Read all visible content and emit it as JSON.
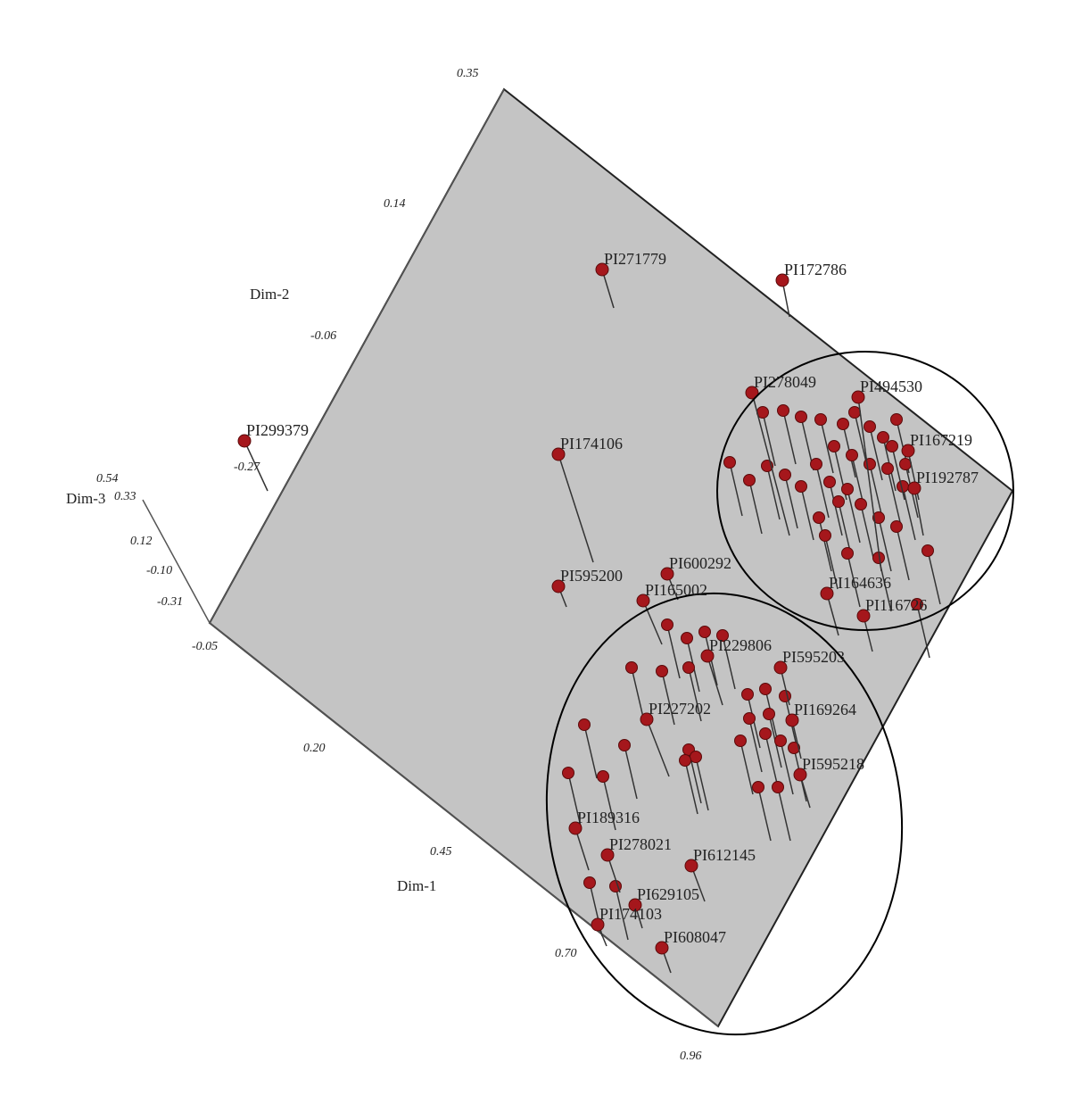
{
  "axes": {
    "dim1": {
      "label": "Dim-1",
      "ticks": [
        "-0.05",
        "0.20",
        "0.45",
        "0.70",
        "0.96"
      ]
    },
    "dim2": {
      "label": "Dim-2",
      "ticks": [
        "0.35",
        "0.14",
        "-0.06",
        "-0.27"
      ]
    },
    "dim3": {
      "label": "Dim-3",
      "ticks": [
        "0.54",
        "0.33",
        "0.12",
        "-0.10",
        "-0.31"
      ]
    }
  },
  "points": [
    {
      "label": "PI271779"
    },
    {
      "label": "PI172786"
    },
    {
      "label": "PI299379"
    },
    {
      "label": "PI174106"
    },
    {
      "label": "PI595200"
    },
    {
      "label": "PI600292"
    },
    {
      "label": "PI165002"
    },
    {
      "label": "PI278049"
    },
    {
      "label": "PI494530"
    },
    {
      "label": "PI167219"
    },
    {
      "label": "PI192787"
    },
    {
      "label": "PI164636"
    },
    {
      "label": "PI116726"
    },
    {
      "label": "PI595203"
    },
    {
      "label": "PI169264"
    },
    {
      "label": "PI595218"
    },
    {
      "label": "PI227202"
    },
    {
      "label": "PI189316"
    },
    {
      "label": "PI278021"
    },
    {
      "label": "PI612145"
    },
    {
      "label": "PI629105"
    },
    {
      "label": "PI174103"
    },
    {
      "label": "PI608047"
    },
    {
      "label": "PI229806"
    }
  ]
}
